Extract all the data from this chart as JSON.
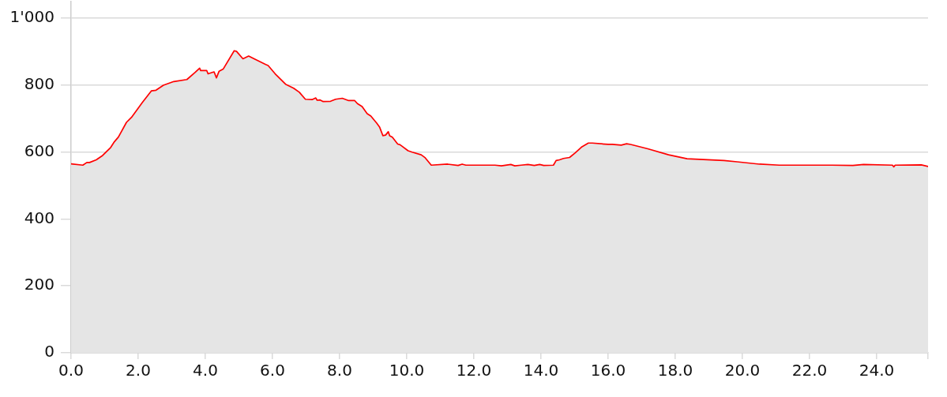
{
  "chart_data": {
    "type": "area",
    "x": [
      0,
      0.35,
      0.47,
      0.55,
      0.75,
      0.94,
      1.18,
      1.29,
      1.41,
      1.65,
      1.8,
      2.12,
      2.39,
      2.53,
      2.75,
      3.06,
      3.45,
      3.69,
      3.83,
      3.86,
      4.04,
      4.08,
      4.26,
      4.33,
      4.41,
      4.53,
      4.86,
      4.93,
      5.12,
      5.29,
      5.49,
      5.8,
      5.87,
      6.08,
      6.39,
      6.63,
      6.8,
      6.98,
      7.18,
      7.29,
      7.33,
      7.41,
      7.51,
      7.73,
      7.88,
      8.08,
      8.27,
      8.45,
      8.53,
      8.67,
      8.82,
      8.93,
      9.11,
      9.19,
      9.29,
      9.37,
      9.45,
      9.49,
      9.57,
      9.73,
      9.8,
      10.04,
      10.16,
      10.43,
      10.55,
      10.73,
      11.22,
      11.53,
      11.65,
      11.76,
      12.63,
      12.82,
      13.1,
      13.22,
      13.41,
      13.61,
      13.8,
      13.96,
      14.08,
      14.37,
      14.45,
      14.55,
      14.67,
      14.85,
      15.02,
      15.22,
      15.41,
      15.53,
      16,
      16.12,
      16.39,
      16.55,
      16.67,
      17.18,
      17.8,
      18.35,
      18.59,
      19.45,
      19.84,
      20.51,
      21.1,
      22.67,
      23.29,
      23.61,
      24.47,
      24.51,
      24.55,
      25.33,
      25.53
    ],
    "series": [
      {
        "color": "#ff0000",
        "values": [
          565,
          561,
          569,
          569,
          577,
          590,
          614,
          631,
          645,
          689,
          704,
          748,
          783,
          785,
          800,
          811,
          817,
          838,
          851,
          844,
          844,
          834,
          840,
          822,
          842,
          848,
          903,
          901,
          879,
          887,
          877,
          862,
          859,
          834,
          803,
          791,
          779,
          758,
          757,
          762,
          755,
          756,
          751,
          752,
          758,
          761,
          754,
          754,
          745,
          736,
          715,
          708,
          686,
          675,
          649,
          651,
          661,
          649,
          645,
          624,
          622,
          604,
          600,
          592,
          583,
          561,
          564,
          560,
          564,
          561,
          561,
          559,
          563,
          559,
          561,
          563,
          560,
          563,
          560,
          561,
          575,
          577,
          581,
          584,
          598,
          616,
          627,
          627,
          623,
          623,
          621,
          625,
          623,
          610,
          592,
          580,
          579,
          575,
          571,
          564,
          561,
          561,
          560,
          563,
          561,
          556,
          561,
          562,
          557
        ]
      }
    ],
    "xlim": [
      0,
      25.53
    ],
    "xticks": [
      {
        "value": 0,
        "label": "0.0"
      },
      {
        "value": 2,
        "label": "2.0"
      },
      {
        "value": 4,
        "label": "4.0"
      },
      {
        "value": 6,
        "label": "6.0"
      },
      {
        "value": 8,
        "label": "8.0"
      },
      {
        "value": 10,
        "label": "10.0"
      },
      {
        "value": 12,
        "label": "12.0"
      },
      {
        "value": 14,
        "label": "14.0"
      },
      {
        "value": 16,
        "label": "16.0"
      },
      {
        "value": 18,
        "label": "18.0"
      },
      {
        "value": 20,
        "label": "20.0"
      },
      {
        "value": 22,
        "label": "22.0"
      },
      {
        "value": 24,
        "label": "24.0"
      },
      {
        "value": 25.53,
        "label": null
      }
    ],
    "ylim": [
      0,
      1050
    ],
    "yticks": [
      0,
      200,
      400,
      600,
      800,
      {
        "value": 1000,
        "label": "1'000"
      }
    ],
    "grid": "y"
  }
}
